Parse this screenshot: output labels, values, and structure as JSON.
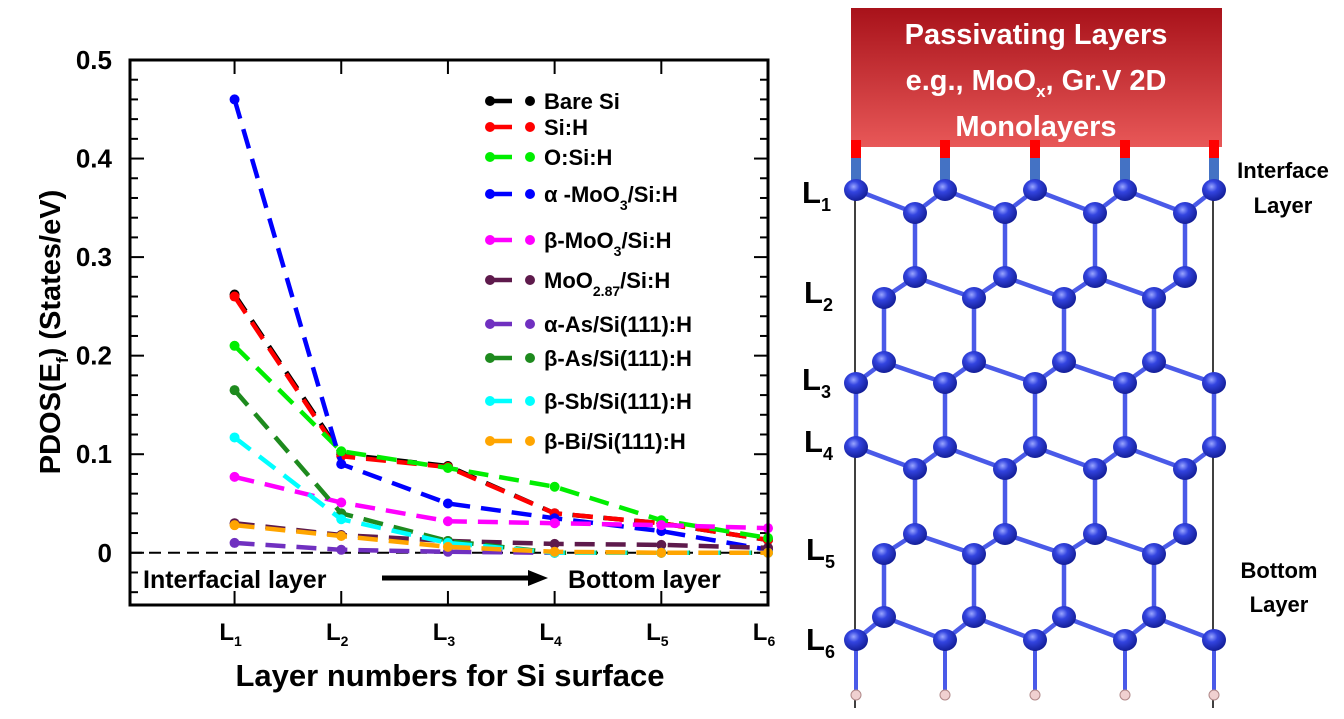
{
  "chart_data": {
    "type": "line",
    "title": "",
    "xlabel": "Layer numbers for Si surface",
    "ylabel": {
      "pre": "PDOS(E",
      "sub": "f",
      "post": ") (States/eV)"
    },
    "x": [
      1,
      2,
      3,
      4,
      5,
      6
    ],
    "x_ticks": [
      {
        "pre": "L",
        "sub": "1"
      },
      {
        "pre": "L",
        "sub": "2"
      },
      {
        "pre": "L",
        "sub": "3"
      },
      {
        "pre": "L",
        "sub": "4"
      },
      {
        "pre": "L",
        "sub": "5"
      },
      {
        "pre": "L",
        "sub": "6"
      }
    ],
    "xlim": [
      0.02,
      6.0
    ],
    "ylim": [
      -0.053,
      0.5
    ],
    "y_ticks": [
      {
        "value": 0,
        "label": "0"
      },
      {
        "value": 0.1,
        "label": "0.1"
      },
      {
        "value": 0.2,
        "label": "0.2"
      },
      {
        "value": 0.3,
        "label": "0.3"
      },
      {
        "value": 0.4,
        "label": "0.4"
      },
      {
        "value": 0.5,
        "label": "0.5"
      }
    ],
    "grid": false,
    "reference_line": 0,
    "legend_position": "top-right",
    "annotations": {
      "left": "Interfacial layer",
      "right": "Bottom layer"
    },
    "series": [
      {
        "name": {
          "pre": "Bare Si",
          "sub": "",
          "post": ""
        },
        "color": "#000000",
        "values": [
          0.262,
          0.1,
          0.088,
          0.04,
          0.03,
          0.013
        ]
      },
      {
        "name": {
          "pre": "Si:H",
          "sub": "",
          "post": ""
        },
        "color": "#ff0000",
        "values": [
          0.26,
          0.098,
          0.087,
          0.04,
          0.03,
          0.013
        ]
      },
      {
        "name": {
          "pre": "O:Si:H",
          "sub": "",
          "post": ""
        },
        "color": "#00ee00",
        "values": [
          0.21,
          0.103,
          0.086,
          0.067,
          0.033,
          0.015
        ]
      },
      {
        "name": {
          "pre": "α -MoO",
          "sub": "3",
          "post": "/Si:H"
        },
        "color": "#0000ff",
        "values": [
          0.46,
          0.09,
          0.05,
          0.035,
          0.022,
          0.003
        ]
      },
      {
        "name": {
          "pre": "β-MoO",
          "sub": "3",
          "post": "/Si:H"
        },
        "color": "#ff00ff",
        "values": [
          0.077,
          0.051,
          0.032,
          0.03,
          0.028,
          0.025
        ]
      },
      {
        "name": {
          "pre": "MoO",
          "sub": "2.87",
          "post": "/Si:H"
        },
        "color": "#5e1a4c",
        "values": [
          0.03,
          0.018,
          0.012,
          0.009,
          0.008,
          0.005
        ]
      },
      {
        "name": {
          "pre": "α-As/Si(111):H",
          "sub": "",
          "post": ""
        },
        "color": "#7030c0",
        "values": [
          0.01,
          0.003,
          0.001,
          0.0,
          0.0,
          0.0
        ]
      },
      {
        "name": {
          "pre": "β-As/Si(111):H",
          "sub": "",
          "post": ""
        },
        "color": "#1e8a1e",
        "values": [
          0.165,
          0.04,
          0.012,
          0.0,
          0.0,
          0.0
        ]
      },
      {
        "name": {
          "pre": "β-Sb/Si(111):H",
          "sub": "",
          "post": ""
        },
        "color": "#00ffff",
        "values": [
          0.117,
          0.034,
          0.01,
          0.0,
          0.0,
          0.0
        ]
      },
      {
        "name": {
          "pre": "β-Bi/Si(111):H",
          "sub": "",
          "post": ""
        },
        "color": "#ffa500",
        "values": [
          0.028,
          0.017,
          0.006,
          0.001,
          0.0,
          0.0
        ]
      }
    ]
  },
  "diagram": {
    "banner_line1": "Passivating Layers",
    "banner_line2_pre": "e.g., MoO",
    "banner_line2_sub": "x",
    "banner_line2_post": ",  Gr.V 2D",
    "banner_line3": "Monolayers",
    "layers": [
      {
        "pre": "L",
        "sub": "1"
      },
      {
        "pre": "L",
        "sub": "2"
      },
      {
        "pre": "L",
        "sub": "3"
      },
      {
        "pre": "L",
        "sub": "4"
      },
      {
        "pre": "L",
        "sub": "5"
      },
      {
        "pre": "L",
        "sub": "6"
      }
    ],
    "interface_label": [
      "Interface",
      "Layer"
    ],
    "bottom_label": [
      "Bottom",
      "Layer"
    ],
    "colors": {
      "banner_top": "#a8121a",
      "banner_bottom": "#e85858",
      "atom": "#2a3ad8",
      "bond": "#4a5ae8",
      "cap_red": "#ff0000",
      "cap_blue": "#4472c4",
      "hydrogen": "#f0d0d0"
    }
  }
}
